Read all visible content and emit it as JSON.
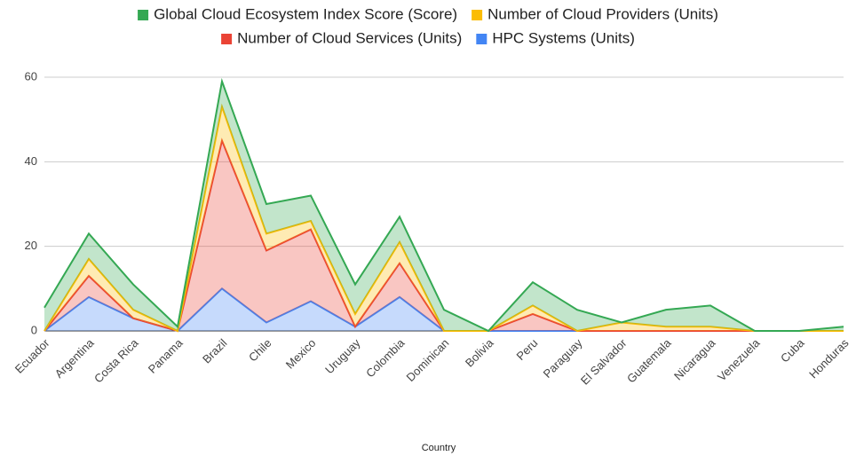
{
  "chart_data": {
    "type": "stacked-area",
    "x_label": "Country",
    "categories": [
      "Ecuador",
      "Argentina",
      "Costa Rica",
      "Panama",
      "Brazil",
      "Chile",
      "Mexico",
      "Uruguay",
      "Colombia",
      "Dominican",
      "Bolivia",
      "Peru",
      "Paraguay",
      "El Salvador",
      "Guatemala",
      "Nicaragua",
      "Venezuela",
      "Cuba",
      "Honduras"
    ],
    "series": [
      {
        "name": "HPC Systems (Units)",
        "color": "#4285f4",
        "values": [
          0,
          8,
          3,
          0,
          10,
          2,
          7,
          1,
          8,
          0,
          0,
          0,
          0,
          0,
          0,
          0,
          0,
          0,
          0
        ]
      },
      {
        "name": "Number of Cloud Services (Units)",
        "color": "#ea4335",
        "values": [
          0,
          5,
          0,
          0,
          35,
          17,
          17,
          0,
          8,
          0,
          0,
          4,
          0,
          0,
          0,
          0,
          0,
          0,
          0
        ]
      },
      {
        "name": "Number of Cloud Providers (Units)",
        "color": "#fbbc04",
        "values": [
          0,
          4,
          2,
          0,
          8,
          4,
          2,
          3,
          5,
          0,
          0,
          2,
          0,
          2,
          1,
          1,
          0,
          0,
          0
        ]
      },
      {
        "name": "Global Cloud Ecosystem Index Score (Score)",
        "color": "#34a853",
        "values": [
          5.5,
          6,
          6,
          1,
          6,
          7,
          6,
          7,
          6,
          5,
          0,
          5.5,
          5,
          0,
          4,
          5,
          0,
          0,
          1
        ]
      }
    ],
    "ylim": [
      0,
      60
    ],
    "yticks": [
      0,
      20,
      40,
      60
    ],
    "grid": true
  }
}
